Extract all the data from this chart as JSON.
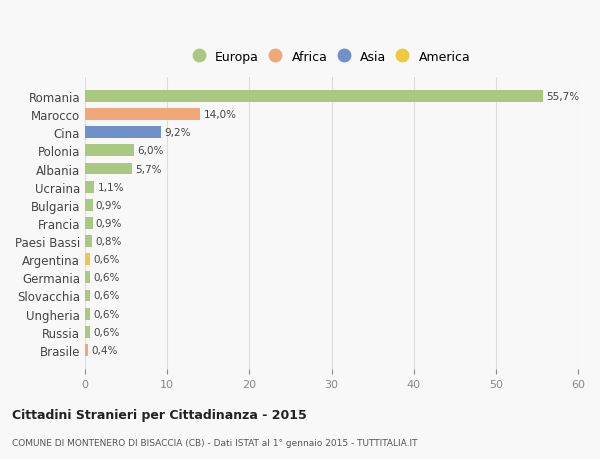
{
  "countries": [
    "Romania",
    "Marocco",
    "Cina",
    "Polonia",
    "Albania",
    "Ucraina",
    "Bulgaria",
    "Francia",
    "Paesi Bassi",
    "Argentina",
    "Germania",
    "Slovacchia",
    "Ungheria",
    "Russia",
    "Brasile"
  ],
  "values": [
    55.7,
    14.0,
    9.2,
    6.0,
    5.7,
    1.1,
    0.9,
    0.9,
    0.8,
    0.6,
    0.6,
    0.6,
    0.6,
    0.6,
    0.4
  ],
  "labels": [
    "55,7%",
    "14,0%",
    "9,2%",
    "6,0%",
    "5,7%",
    "1,1%",
    "0,9%",
    "0,9%",
    "0,8%",
    "0,6%",
    "0,6%",
    "0,6%",
    "0,6%",
    "0,6%",
    "0,4%"
  ],
  "colors": [
    "#a8c97f",
    "#f0a878",
    "#7090c8",
    "#a8c97f",
    "#a8c97f",
    "#a8c97f",
    "#a8c97f",
    "#a8c97f",
    "#a8c97f",
    "#f0c840",
    "#a8c97f",
    "#a8c97f",
    "#a8c97f",
    "#a8c97f",
    "#f0a878"
  ],
  "legend_labels": [
    "Europa",
    "Africa",
    "Asia",
    "America"
  ],
  "legend_colors": [
    "#a8c97f",
    "#f0a878",
    "#7090c8",
    "#f0c840"
  ],
  "title": "Cittadini Stranieri per Cittadinanza - 2015",
  "subtitle": "COMUNE DI MONTENERO DI BISACCIA (CB) - Dati ISTAT al 1° gennaio 2015 - TUTTITALIA.IT",
  "xlim": [
    0,
    60
  ],
  "xticks": [
    0,
    10,
    20,
    30,
    40,
    50,
    60
  ],
  "bg_color": "#f8f8f8",
  "bar_height": 0.65,
  "grid_color": "#dddddd"
}
